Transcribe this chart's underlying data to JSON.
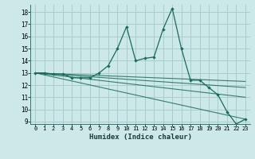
{
  "xlabel": "Humidex (Indice chaleur)",
  "background_color": "#cce8e8",
  "grid_color": "#a8cccc",
  "line_color": "#1a6b5a",
  "xlim": [
    -0.5,
    23.5
  ],
  "ylim": [
    8.8,
    18.6
  ],
  "yticks": [
    9,
    10,
    11,
    12,
    13,
    14,
    15,
    16,
    17,
    18
  ],
  "xticks": [
    0,
    1,
    2,
    3,
    4,
    5,
    6,
    7,
    8,
    9,
    10,
    11,
    12,
    13,
    14,
    15,
    16,
    17,
    18,
    19,
    20,
    21,
    22,
    23
  ],
  "series": [
    [
      0,
      13.0
    ],
    [
      1,
      13.0
    ],
    [
      2,
      12.9
    ],
    [
      3,
      12.9
    ],
    [
      4,
      12.6
    ],
    [
      5,
      12.6
    ],
    [
      6,
      12.6
    ],
    [
      7,
      13.0
    ],
    [
      8,
      13.6
    ],
    [
      9,
      15.0
    ],
    [
      10,
      16.8
    ],
    [
      11,
      14.0
    ],
    [
      12,
      14.2
    ],
    [
      13,
      14.3
    ],
    [
      14,
      16.6
    ],
    [
      15,
      18.3
    ],
    [
      16,
      15.0
    ],
    [
      17,
      12.4
    ],
    [
      18,
      12.4
    ],
    [
      19,
      11.8
    ],
    [
      20,
      11.2
    ],
    [
      21,
      9.8
    ],
    [
      22,
      8.8
    ],
    [
      23,
      9.2
    ]
  ],
  "extra_lines": [
    {
      "x": [
        0,
        23
      ],
      "y": [
        13.0,
        9.2
      ]
    },
    {
      "x": [
        0,
        23
      ],
      "y": [
        13.0,
        11.0
      ]
    },
    {
      "x": [
        0,
        23
      ],
      "y": [
        13.0,
        11.8
      ]
    },
    {
      "x": [
        0,
        23
      ],
      "y": [
        13.0,
        12.3
      ]
    }
  ]
}
